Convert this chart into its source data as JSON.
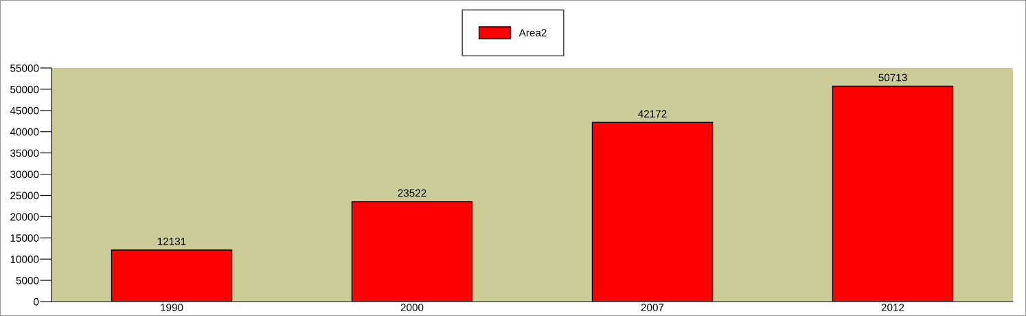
{
  "chart_data": {
    "type": "bar",
    "categories": [
      "1990",
      "2000",
      "2007",
      "2012"
    ],
    "series": [
      {
        "name": "Area2",
        "color": "#ff0000",
        "values": [
          12131,
          23522,
          42172,
          50713
        ]
      }
    ],
    "ylim": [
      0,
      55000
    ],
    "yticks": [
      0,
      5000,
      10000,
      15000,
      20000,
      25000,
      30000,
      35000,
      40000,
      45000,
      50000,
      55000
    ],
    "data_labels": true,
    "legend": "top",
    "grid": false
  }
}
